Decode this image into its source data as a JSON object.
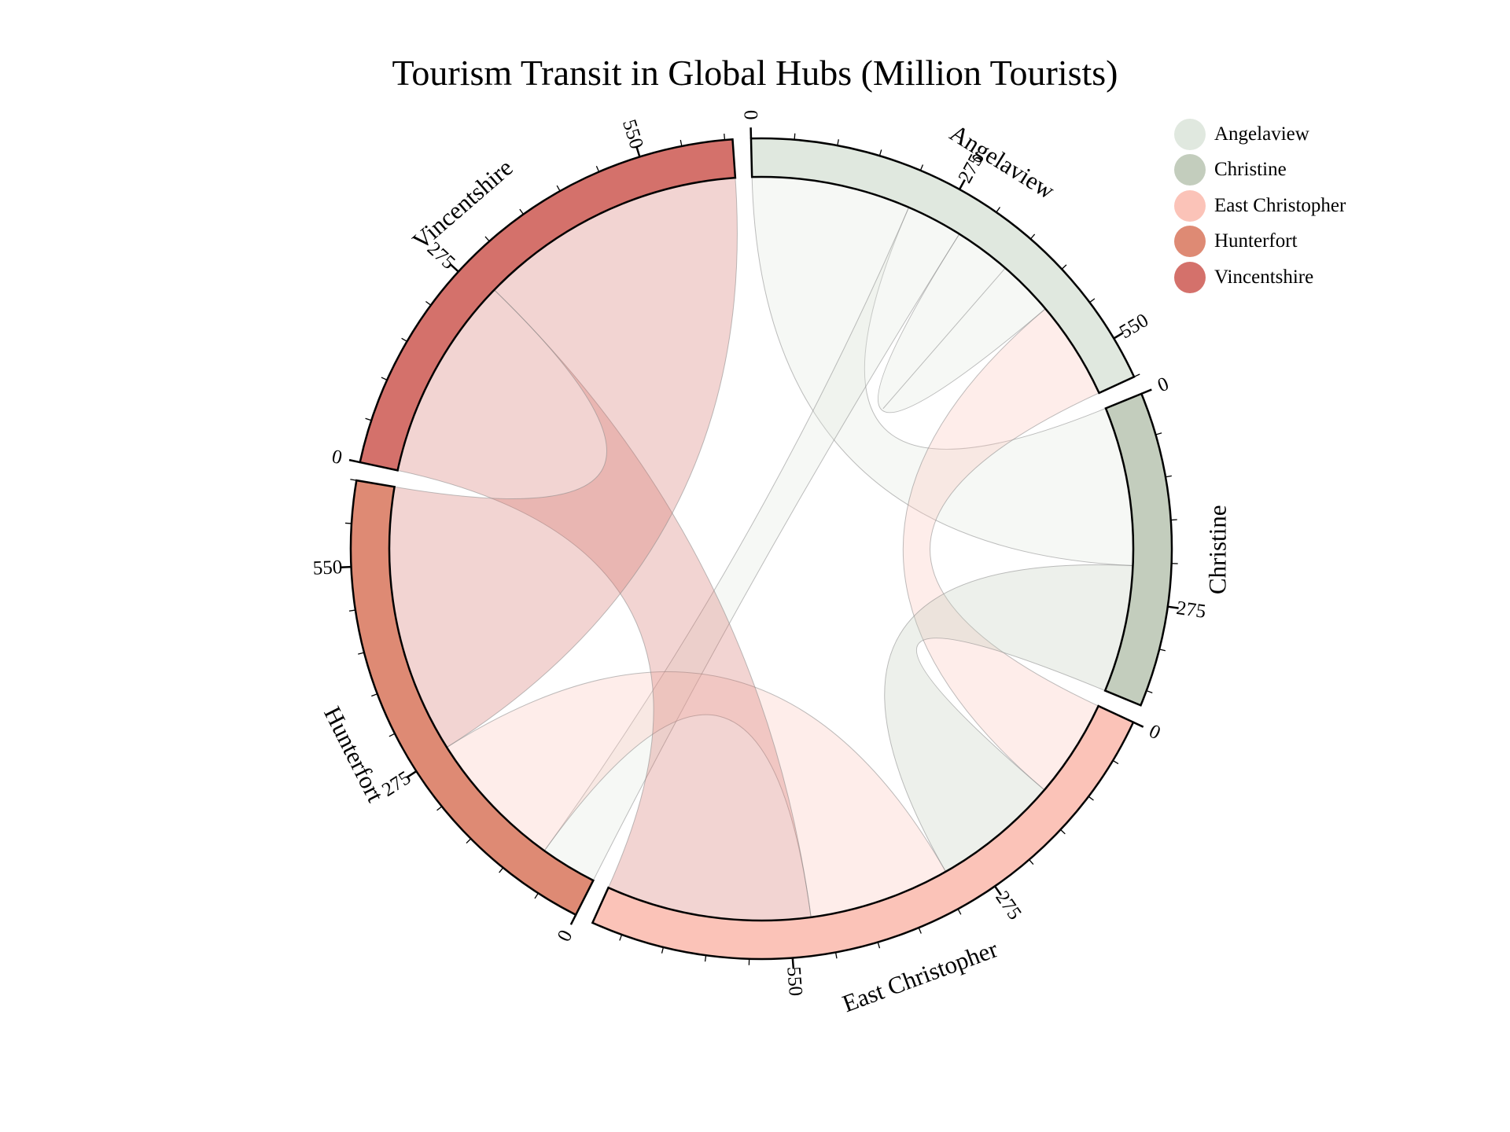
{
  "chart_data": {
    "type": "chord",
    "title": "Tourism Transit in Global Hubs (Million Tourists)",
    "nodes": [
      "Angelaview",
      "Christine",
      "East Christopher",
      "Hunterfort",
      "Vincentshire"
    ],
    "colors": [
      "#e0e8df",
      "#c3cdbd",
      "#fbc3b8",
      "#de8a74",
      "#d4716b"
    ],
    "tick_step": 275,
    "minor_tick_step": 55,
    "links": [
      {
        "source": "Angelaview",
        "target": "Christine",
        "value": 225
      },
      {
        "source": "Angelaview",
        "target": "Hunterfort",
        "value": 80
      },
      {
        "source": "Angelaview",
        "target": "Angelaview",
        "value": 80
      },
      {
        "source": "East Christopher",
        "target": "Angelaview",
        "value": 140
      },
      {
        "source": "Christine",
        "target": "East Christopher",
        "value": 180
      },
      {
        "source": "East Christopher",
        "target": "Hunterfort",
        "value": 200
      },
      {
        "source": "Vincentshire",
        "target": "East Christopher",
        "value": 290
      },
      {
        "source": "Vincentshire",
        "target": "Hunterfort",
        "value": 380
      }
    ]
  },
  "legend": {
    "items": [
      {
        "label": "Angelaview",
        "color": "#e0e8df"
      },
      {
        "label": "Christine",
        "color": "#c3cdbd"
      },
      {
        "label": "East Christopher",
        "color": "#fbc3b8"
      },
      {
        "label": "Hunterfort",
        "color": "#de8a74"
      },
      {
        "label": "Vincentshire",
        "color": "#d4716b"
      }
    ]
  }
}
